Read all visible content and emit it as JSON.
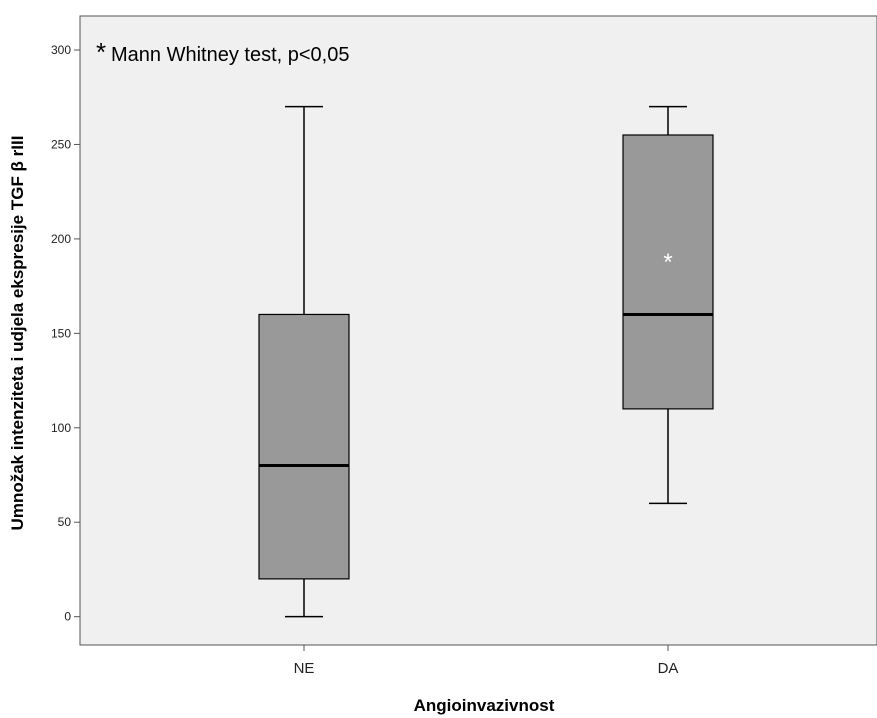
{
  "chart_data": {
    "type": "boxplot",
    "xlabel": "Angioinvazivnost",
    "ylabel": "Umnožak intenziteta i udjela ekspresije TGF β rIII",
    "ylim": [
      -15,
      318
    ],
    "yticks": [
      0,
      50,
      100,
      150,
      200,
      250,
      300
    ],
    "grid": false,
    "categories": [
      "NE",
      "DA"
    ],
    "boxes": [
      {
        "category": "NE",
        "min": 0,
        "q1": 20,
        "median": 80,
        "q3": 160,
        "max": 270
      },
      {
        "category": "DA",
        "min": 60,
        "q1": 110,
        "median": 160,
        "q3": 255,
        "max": 270
      }
    ],
    "markers": [
      {
        "category": "DA",
        "symbol": "*",
        "y": 190,
        "color": "#ffffff"
      }
    ],
    "annotation": {
      "star": "*",
      "text": "Mann Whitney test, p<0,05"
    },
    "colors": {
      "plot_background": "#f0f0f0",
      "box_fill": "#999999",
      "box_stroke": "#000000",
      "median": "#000000"
    }
  }
}
